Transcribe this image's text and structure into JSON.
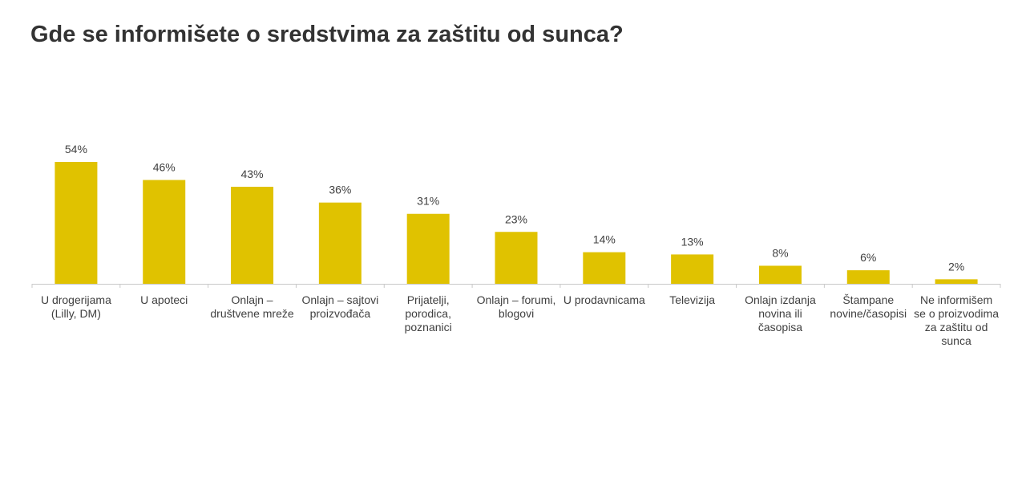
{
  "chart_data": {
    "type": "bar",
    "title": "Gde se informišete o sredstvima za zaštitu od sunca?",
    "categories": [
      "U drogerijama (Lilly, DM)",
      "U apoteci",
      "Onlajn – društvene mreže",
      "Onlajn – sajtovi proizvođača",
      "Prijatelji, porodica, poznanici",
      "Onlajn – forumi, blogovi",
      "U prodavnicama",
      "Televizija",
      "Onlajn izdanja novina ili časopisa",
      "Štampane novine/časopisi",
      "Ne informišem se o proizvodima za zaštitu od sunca"
    ],
    "values": [
      54,
      46,
      43,
      36,
      31,
      23,
      14,
      13,
      8,
      6,
      2
    ],
    "value_labels": [
      "54%",
      "46%",
      "43%",
      "36%",
      "31%",
      "23%",
      "14%",
      "13%",
      "8%",
      "6%",
      "2%"
    ],
    "color": "#e0c200"
  }
}
